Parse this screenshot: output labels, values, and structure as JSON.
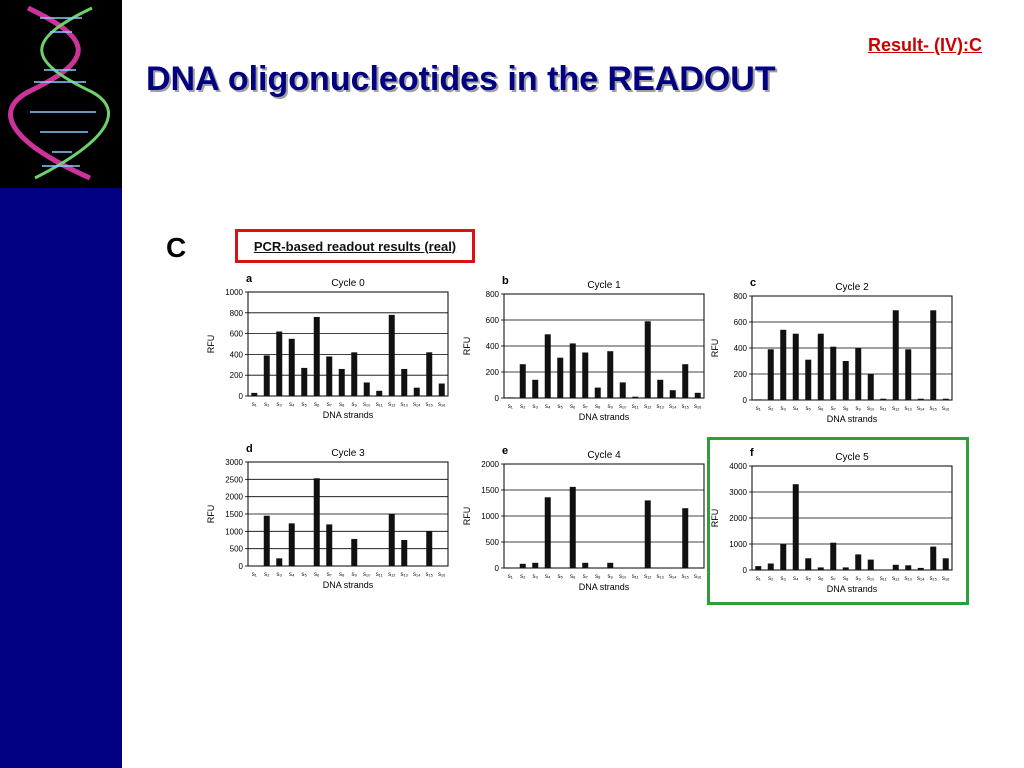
{
  "slide": {
    "tag": "Result- (IV):C",
    "title": "DNA oligonucleotides in the READOUT",
    "panel_letter": "C",
    "readout_title": "PCR-based readout results (real)",
    "background_color": "#000080",
    "highlight_color": "#2e9e3a",
    "readout_border_color": "#dd1111"
  },
  "chart_data": [
    {
      "type": "bar",
      "label": "a",
      "title": "Cycle 0",
      "xlabel": "DNA strands",
      "ylabel": "RFU",
      "ylim": [
        0,
        1000
      ],
      "yticks": [
        0,
        200,
        400,
        600,
        800,
        1000
      ],
      "categories": [
        "s₁",
        "s₂",
        "s₃",
        "s₄",
        "s₅",
        "s₆",
        "s₇",
        "s₈",
        "s₉",
        "s₁₀",
        "s₁₁",
        "s₁₂",
        "s₁₃",
        "s₁₄",
        "s₁₅",
        "s₁₆"
      ],
      "values": [
        30,
        390,
        620,
        550,
        270,
        760,
        380,
        260,
        420,
        130,
        50,
        780,
        260,
        80,
        420,
        120
      ]
    },
    {
      "type": "bar",
      "label": "b",
      "title": "Cycle 1",
      "xlabel": "DNA strands",
      "ylabel": "RFU",
      "ylim": [
        0,
        800
      ],
      "yticks": [
        0,
        200,
        400,
        600,
        800
      ],
      "categories": [
        "s₁",
        "s₂",
        "s₃",
        "s₄",
        "s₅",
        "s₆",
        "s₇",
        "s₈",
        "s₉",
        "s₁₀",
        "s₁₁",
        "s₁₂",
        "s₁₃",
        "s₁₄",
        "s₁₅",
        "s₁₆"
      ],
      "values": [
        5,
        260,
        140,
        490,
        310,
        420,
        350,
        80,
        360,
        120,
        10,
        590,
        140,
        60,
        260,
        40
      ]
    },
    {
      "type": "bar",
      "label": "c",
      "title": "Cycle 2",
      "xlabel": "DNA strands",
      "ylabel": "RFU",
      "ylim": [
        0,
        800
      ],
      "yticks": [
        0,
        200,
        400,
        600,
        800
      ],
      "categories": [
        "s₁",
        "s₂",
        "s₃",
        "s₄",
        "s₅",
        "s₆",
        "s₇",
        "s₈",
        "s₉",
        "s₁₀",
        "s₁₁",
        "s₁₂",
        "s₁₃",
        "s₁₄",
        "s₁₅",
        "s₁₆"
      ],
      "values": [
        5,
        390,
        540,
        510,
        310,
        510,
        410,
        300,
        400,
        200,
        10,
        690,
        390,
        10,
        690,
        10
      ]
    },
    {
      "type": "bar",
      "label": "d",
      "title": "Cycle 3",
      "xlabel": "DNA strands",
      "ylabel": "RFU",
      "ylim": [
        0,
        3000
      ],
      "yticks": [
        0,
        500,
        1000,
        1500,
        2000,
        2500,
        3000
      ],
      "categories": [
        "s₁",
        "s₂",
        "s₃",
        "s₄",
        "s₅",
        "s₆",
        "s₇",
        "s₈",
        "s₉",
        "s₁₀",
        "s₁₁",
        "s₁₂",
        "s₁₃",
        "s₁₄",
        "s₁₅",
        "s₁₆"
      ],
      "values": [
        10,
        1450,
        220,
        1230,
        10,
        2530,
        1200,
        10,
        780,
        10,
        10,
        1500,
        750,
        10,
        1000,
        10
      ]
    },
    {
      "type": "bar",
      "label": "e",
      "title": "Cycle 4",
      "xlabel": "DNA strands",
      "ylabel": "RFU",
      "ylim": [
        0,
        2000
      ],
      "yticks": [
        0,
        500,
        1000,
        1500,
        2000
      ],
      "categories": [
        "s₁",
        "s₂",
        "s₃",
        "s₄",
        "s₅",
        "s₆",
        "s₇",
        "s₈",
        "s₉",
        "s₁₀",
        "s₁₁",
        "s₁₂",
        "s₁₃",
        "s₁₄",
        "s₁₅",
        "s₁₆"
      ],
      "values": [
        10,
        80,
        100,
        1360,
        10,
        1560,
        100,
        10,
        100,
        10,
        10,
        1300,
        10,
        10,
        1150,
        10
      ]
    },
    {
      "type": "bar",
      "label": "f",
      "title": "Cycle 5",
      "xlabel": "DNA strands",
      "ylabel": "RFU",
      "ylim": [
        0,
        4000
      ],
      "yticks": [
        0,
        1000,
        2000,
        3000,
        4000
      ],
      "categories": [
        "s₁",
        "s₂",
        "s₃",
        "s₄",
        "s₅",
        "s₆",
        "s₇",
        "s₈",
        "s₉",
        "s₁₀",
        "s₁₁",
        "s₁₂",
        "s₁₃",
        "s₁₄",
        "s₁₅",
        "s₁₆"
      ],
      "values": [
        150,
        250,
        1000,
        3300,
        450,
        100,
        1050,
        100,
        600,
        400,
        10,
        200,
        180,
        80,
        900,
        450
      ]
    }
  ]
}
